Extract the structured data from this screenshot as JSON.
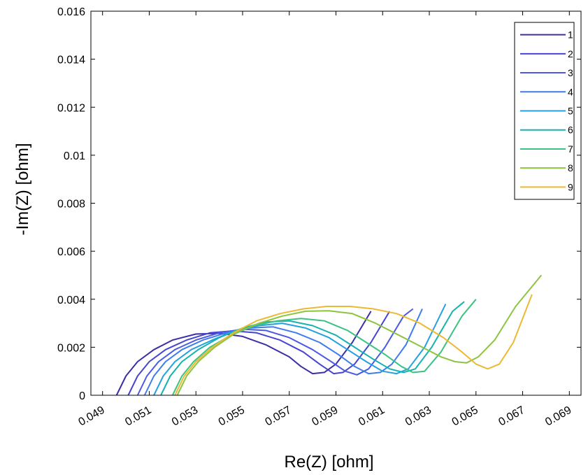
{
  "chart_data": {
    "type": "line",
    "title": "",
    "xlabel": "Re(Z) [ohm]",
    "ylabel": "-Im(Z) [ohm]",
    "xlim": [
      0.0485,
      0.0695
    ],
    "ylim": [
      0,
      0.016
    ],
    "xticks": [
      "0.049",
      "0.051",
      "0.053",
      "0.055",
      "0.057",
      "0.059",
      "0.061",
      "0.063",
      "0.065",
      "0.067",
      "0.069"
    ],
    "yticks": [
      "0",
      "0.002",
      "0.004",
      "0.006",
      "0.008",
      "0.01",
      "0.012",
      "0.014",
      "0.016"
    ],
    "grid": false,
    "legend_position": "top-right",
    "series": [
      {
        "name": "1",
        "color": "#3b2fa8",
        "points": [
          [
            0.0496,
            0
          ],
          [
            0.05,
            0.0008
          ],
          [
            0.0505,
            0.0014
          ],
          [
            0.0512,
            0.0019
          ],
          [
            0.052,
            0.0023
          ],
          [
            0.053,
            0.00255
          ],
          [
            0.054,
            0.00258
          ],
          [
            0.055,
            0.00245
          ],
          [
            0.056,
            0.0021
          ],
          [
            0.057,
            0.0016
          ],
          [
            0.0575,
            0.0012
          ],
          [
            0.058,
            0.0009
          ],
          [
            0.0585,
            0.00095
          ],
          [
            0.059,
            0.0013
          ],
          [
            0.0597,
            0.0022
          ],
          [
            0.0605,
            0.0035
          ]
        ]
      },
      {
        "name": "2",
        "color": "#4545d0",
        "points": [
          [
            0.0501,
            0
          ],
          [
            0.0505,
            0.0008
          ],
          [
            0.051,
            0.0014
          ],
          [
            0.0517,
            0.0019
          ],
          [
            0.0526,
            0.0023
          ],
          [
            0.0536,
            0.0026
          ],
          [
            0.0546,
            0.00268
          ],
          [
            0.0556,
            0.0026
          ],
          [
            0.0566,
            0.0023
          ],
          [
            0.0576,
            0.0018
          ],
          [
            0.0583,
            0.0013
          ],
          [
            0.0589,
            0.0009
          ],
          [
            0.0593,
            0.00095
          ],
          [
            0.0598,
            0.0013
          ],
          [
            0.0605,
            0.0022
          ],
          [
            0.0613,
            0.0035
          ]
        ]
      },
      {
        "name": "3",
        "color": "#4a5ae5",
        "points": [
          [
            0.0505,
            0
          ],
          [
            0.0509,
            0.0008
          ],
          [
            0.0514,
            0.0014
          ],
          [
            0.0521,
            0.0019
          ],
          [
            0.053,
            0.0023
          ],
          [
            0.054,
            0.0026
          ],
          [
            0.055,
            0.00275
          ],
          [
            0.056,
            0.0027
          ],
          [
            0.057,
            0.0024
          ],
          [
            0.058,
            0.0019
          ],
          [
            0.0588,
            0.0014
          ],
          [
            0.0594,
            0.001
          ],
          [
            0.0599,
            0.00085
          ],
          [
            0.0604,
            0.0011
          ],
          [
            0.0611,
            0.002
          ],
          [
            0.0619,
            0.0033
          ],
          [
            0.0623,
            0.0036
          ]
        ]
      },
      {
        "name": "4",
        "color": "#3f7bf0",
        "points": [
          [
            0.0508,
            0
          ],
          [
            0.0512,
            0.0008
          ],
          [
            0.0517,
            0.0014
          ],
          [
            0.0524,
            0.0019
          ],
          [
            0.0533,
            0.0023
          ],
          [
            0.0543,
            0.0026
          ],
          [
            0.0553,
            0.0028
          ],
          [
            0.0563,
            0.00285
          ],
          [
            0.0573,
            0.0026
          ],
          [
            0.0583,
            0.0022
          ],
          [
            0.0591,
            0.0017
          ],
          [
            0.0598,
            0.0012
          ],
          [
            0.0604,
            0.0009
          ],
          [
            0.0609,
            0.00095
          ],
          [
            0.0614,
            0.0013
          ],
          [
            0.062,
            0.0021
          ],
          [
            0.0627,
            0.0036
          ]
        ]
      },
      {
        "name": "5",
        "color": "#25a0e0",
        "points": [
          [
            0.0512,
            0
          ],
          [
            0.0516,
            0.0008
          ],
          [
            0.0521,
            0.0014
          ],
          [
            0.0528,
            0.0019
          ],
          [
            0.0537,
            0.0023
          ],
          [
            0.0547,
            0.0027
          ],
          [
            0.0557,
            0.0029
          ],
          [
            0.0567,
            0.003
          ],
          [
            0.0577,
            0.0028
          ],
          [
            0.0587,
            0.0024
          ],
          [
            0.0595,
            0.0019
          ],
          [
            0.0603,
            0.0014
          ],
          [
            0.061,
            0.001
          ],
          [
            0.0616,
            0.0009
          ],
          [
            0.0621,
            0.0011
          ],
          [
            0.0628,
            0.002
          ],
          [
            0.0637,
            0.0038
          ]
        ]
      },
      {
        "name": "6",
        "color": "#15b3b0",
        "points": [
          [
            0.0515,
            0
          ],
          [
            0.0519,
            0.0008
          ],
          [
            0.0524,
            0.0014
          ],
          [
            0.0531,
            0.0019
          ],
          [
            0.054,
            0.0024
          ],
          [
            0.055,
            0.0028
          ],
          [
            0.056,
            0.00305
          ],
          [
            0.057,
            0.0031
          ],
          [
            0.058,
            0.0029
          ],
          [
            0.059,
            0.0025
          ],
          [
            0.0598,
            0.002
          ],
          [
            0.0606,
            0.0015
          ],
          [
            0.0613,
            0.0011
          ],
          [
            0.0619,
            0.00095
          ],
          [
            0.0624,
            0.0011
          ],
          [
            0.0631,
            0.002
          ],
          [
            0.064,
            0.0035
          ],
          [
            0.0645,
            0.0039
          ]
        ]
      },
      {
        "name": "7",
        "color": "#3cc283",
        "points": [
          [
            0.052,
            0
          ],
          [
            0.0524,
            0.0008
          ],
          [
            0.0529,
            0.0014
          ],
          [
            0.0536,
            0.002
          ],
          [
            0.0545,
            0.0025
          ],
          [
            0.0555,
            0.0029
          ],
          [
            0.0565,
            0.0031
          ],
          [
            0.0575,
            0.0032
          ],
          [
            0.0585,
            0.0031
          ],
          [
            0.0595,
            0.0027
          ],
          [
            0.0603,
            0.0022
          ],
          [
            0.0611,
            0.0017
          ],
          [
            0.0618,
            0.0012
          ],
          [
            0.0623,
            0.00095
          ],
          [
            0.0628,
            0.001
          ],
          [
            0.0635,
            0.0018
          ],
          [
            0.0644,
            0.0033
          ],
          [
            0.065,
            0.004
          ]
        ]
      },
      {
        "name": "8",
        "color": "#8cc440",
        "points": [
          [
            0.0522,
            0
          ],
          [
            0.0526,
            0.0008
          ],
          [
            0.0531,
            0.0014
          ],
          [
            0.0538,
            0.002
          ],
          [
            0.0547,
            0.0026
          ],
          [
            0.0557,
            0.003
          ],
          [
            0.0567,
            0.0033
          ],
          [
            0.0577,
            0.0035
          ],
          [
            0.0587,
            0.00352
          ],
          [
            0.0597,
            0.0034
          ],
          [
            0.0607,
            0.003
          ],
          [
            0.0617,
            0.0025
          ],
          [
            0.0627,
            0.002
          ],
          [
            0.0635,
            0.0016
          ],
          [
            0.0641,
            0.0014
          ],
          [
            0.0646,
            0.00135
          ],
          [
            0.0651,
            0.0016
          ],
          [
            0.0658,
            0.0023
          ],
          [
            0.0667,
            0.0037
          ],
          [
            0.0678,
            0.005
          ]
        ]
      },
      {
        "name": "9",
        "color": "#ecb933",
        "points": [
          [
            0.0521,
            0
          ],
          [
            0.0525,
            0.0008
          ],
          [
            0.053,
            0.0014
          ],
          [
            0.0537,
            0.002
          ],
          [
            0.0546,
            0.0026
          ],
          [
            0.0556,
            0.0031
          ],
          [
            0.0566,
            0.0034
          ],
          [
            0.0576,
            0.0036
          ],
          [
            0.0586,
            0.0037
          ],
          [
            0.0596,
            0.0037
          ],
          [
            0.0606,
            0.0036
          ],
          [
            0.0616,
            0.0034
          ],
          [
            0.0626,
            0.003
          ],
          [
            0.0636,
            0.0024
          ],
          [
            0.0644,
            0.0018
          ],
          [
            0.065,
            0.0013
          ],
          [
            0.0655,
            0.0011
          ],
          [
            0.066,
            0.0013
          ],
          [
            0.0666,
            0.0022
          ],
          [
            0.0674,
            0.0042
          ]
        ]
      }
    ]
  }
}
